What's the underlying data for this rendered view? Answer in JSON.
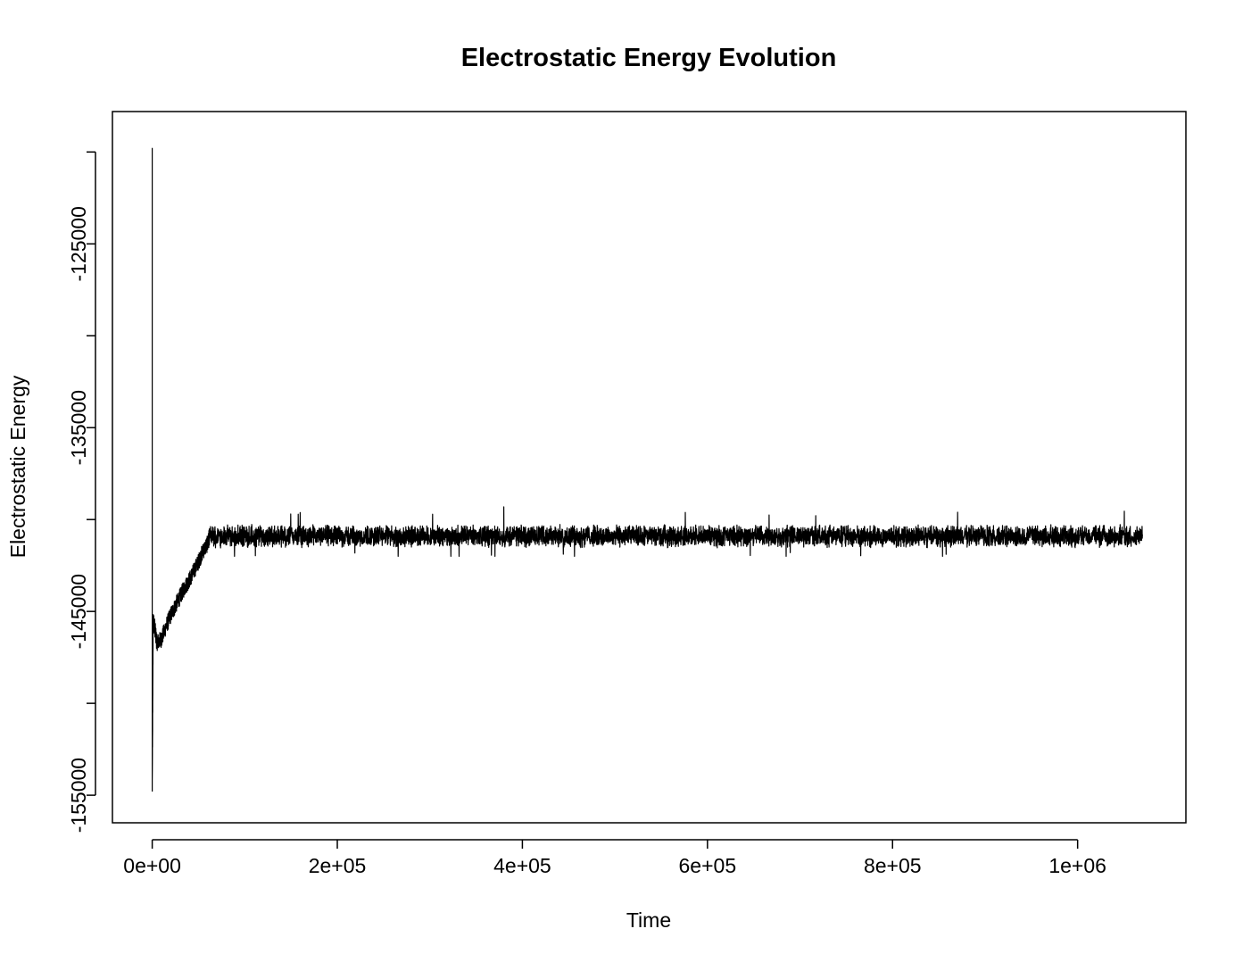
{
  "chart_data": {
    "type": "line",
    "title": "Electrostatic Energy Evolution",
    "xlabel": "Time",
    "ylabel": "Electrostatic Energy",
    "xlim": [
      -43000,
      1117000
    ],
    "ylim": [
      -156500,
      -117800
    ],
    "x_ticks": [
      {
        "value": 0,
        "label": "0e+00"
      },
      {
        "value": 200000,
        "label": "2e+05"
      },
      {
        "value": 400000,
        "label": "4e+05"
      },
      {
        "value": 600000,
        "label": "6e+05"
      },
      {
        "value": 800000,
        "label": "8e+05"
      },
      {
        "value": 1000000,
        "label": "1e+06"
      }
    ],
    "y_ticks": [
      {
        "value": -120000,
        "label": ""
      },
      {
        "value": -125000,
        "label": "-125000"
      },
      {
        "value": -130000,
        "label": ""
      },
      {
        "value": -135000,
        "label": "-135000"
      },
      {
        "value": -140000,
        "label": ""
      },
      {
        "value": -145000,
        "label": "-145000"
      },
      {
        "value": -150000,
        "label": ""
      },
      {
        "value": -155000,
        "label": "-155000"
      }
    ],
    "grid": false,
    "legend": "none",
    "series": [
      {
        "color": "#000000",
        "spike": {
          "x": 0,
          "max": -119800,
          "min": -153700
        },
        "transient": {
          "x": [
            0,
            1000,
            2500,
            5000,
            10000,
            15000,
            20000,
            25000,
            30000,
            35000,
            40000,
            45000,
            50000,
            55000,
            60000,
            62000
          ],
          "y": [
            -154800,
            -145500,
            -145800,
            -146700,
            -146500,
            -145800,
            -145200,
            -144700,
            -144200,
            -143700,
            -143300,
            -142800,
            -142300,
            -141700,
            -141300,
            -140900
          ]
        },
        "steady": {
          "x_start": 62000,
          "x_end": 1070000,
          "mean": -140900,
          "noise_amplitude": 450,
          "max": -139300,
          "min": -142000
        }
      }
    ]
  }
}
